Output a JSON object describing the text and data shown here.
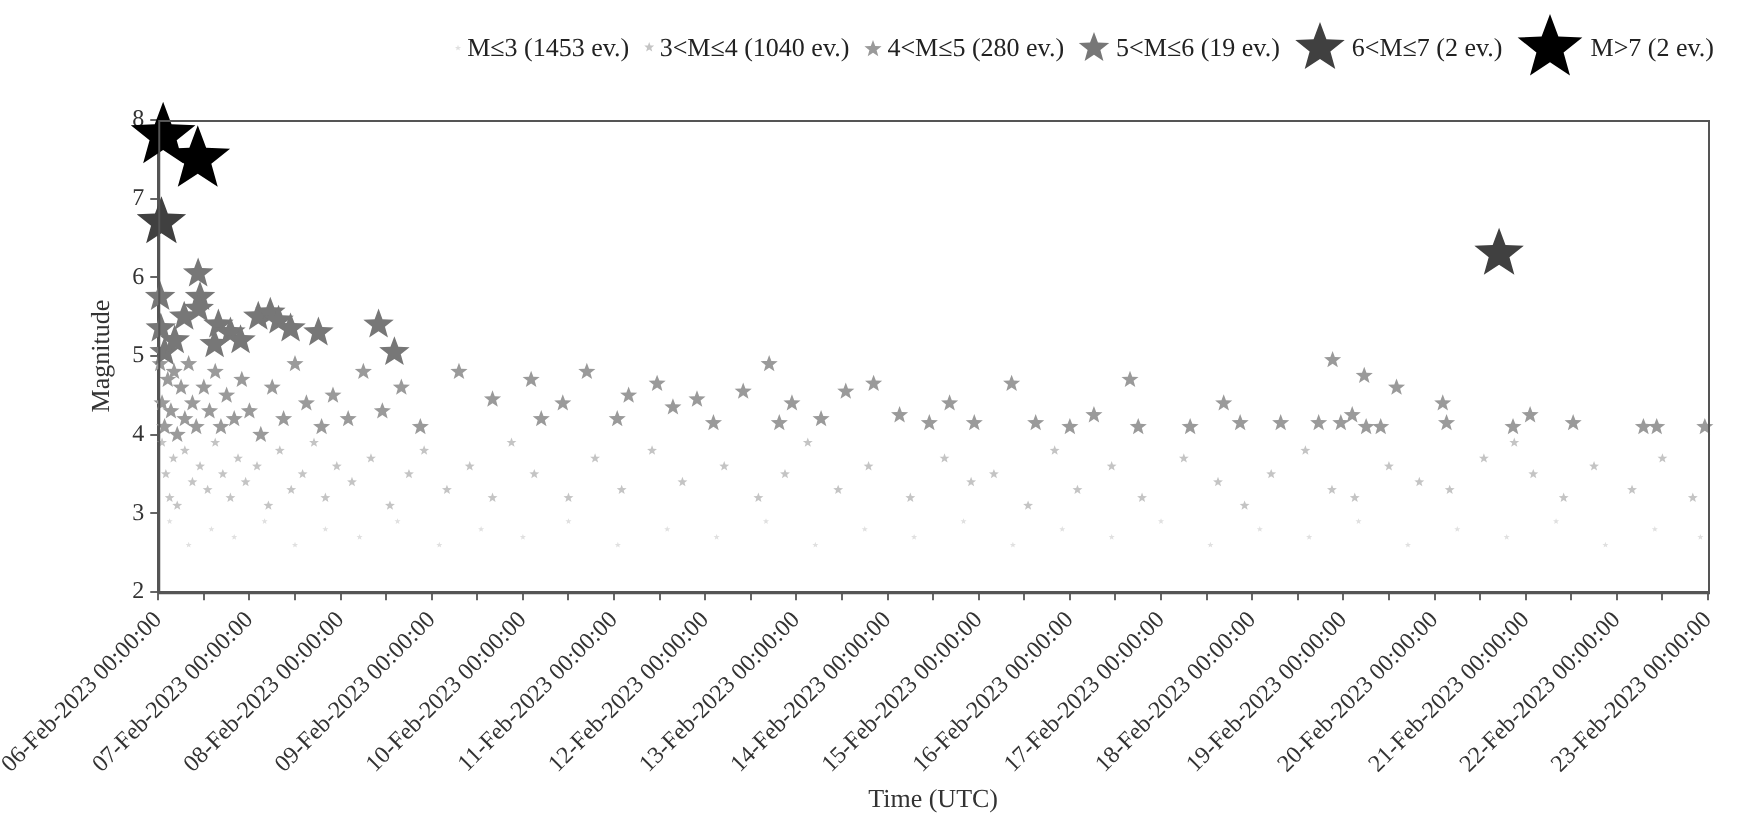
{
  "chart_data": {
    "type": "scatter",
    "xlabel": "Time (UTC)",
    "ylabel": "Magnitude",
    "marker": "star",
    "legend": "top",
    "grid": false,
    "xlim": [
      "2023-02-06",
      "2023-02-23"
    ],
    "xticks": [
      {
        "value": "2023-02-06",
        "label": "06-Feb-2023 00:00:00"
      },
      {
        "value": "2023-02-06T12:00",
        "label": null
      },
      {
        "value": "2023-02-07",
        "label": "07-Feb-2023 00:00:00"
      },
      {
        "value": "2023-02-07T12:00",
        "label": null
      },
      {
        "value": "2023-02-08",
        "label": "08-Feb-2023 00:00:00"
      },
      {
        "value": "2023-02-08T12:00",
        "label": null
      },
      {
        "value": "2023-02-09",
        "label": "09-Feb-2023 00:00:00"
      },
      {
        "value": "2023-02-09T12:00",
        "label": null
      },
      {
        "value": "2023-02-10",
        "label": "10-Feb-2023 00:00:00"
      },
      {
        "value": "2023-02-10T12:00",
        "label": null
      },
      {
        "value": "2023-02-11",
        "label": "11-Feb-2023 00:00:00"
      },
      {
        "value": "2023-02-11T12:00",
        "label": null
      },
      {
        "value": "2023-02-12",
        "label": "12-Feb-2023 00:00:00"
      },
      {
        "value": "2023-02-12T12:00",
        "label": null
      },
      {
        "value": "2023-02-13",
        "label": "13-Feb-2023 00:00:00"
      },
      {
        "value": "2023-02-13T12:00",
        "label": null
      },
      {
        "value": "2023-02-14",
        "label": "14-Feb-2023 00:00:00"
      },
      {
        "value": "2023-02-14T12:00",
        "label": null
      },
      {
        "value": "2023-02-15",
        "label": "15-Feb-2023 00:00:00"
      },
      {
        "value": "2023-02-15T12:00",
        "label": null
      },
      {
        "value": "2023-02-16",
        "label": "16-Feb-2023 00:00:00"
      },
      {
        "value": "2023-02-16T12:00",
        "label": null
      },
      {
        "value": "2023-02-17",
        "label": "17-Feb-2023 00:00:00"
      },
      {
        "value": "2023-02-17T12:00",
        "label": null
      },
      {
        "value": "2023-02-18",
        "label": "18-Feb-2023 00:00:00"
      },
      {
        "value": "2023-02-18T12:00",
        "label": null
      },
      {
        "value": "2023-02-19",
        "label": "19-Feb-2023 00:00:00"
      },
      {
        "value": "2023-02-19T12:00",
        "label": null
      },
      {
        "value": "2023-02-20",
        "label": "20-Feb-2023 00:00:00"
      },
      {
        "value": "2023-02-20T12:00",
        "label": null
      },
      {
        "value": "2023-02-21",
        "label": "21-Feb-2023 00:00:00"
      },
      {
        "value": "2023-02-21T12:00",
        "label": null
      },
      {
        "value": "2023-02-22",
        "label": "22-Feb-2023 00:00:00"
      },
      {
        "value": "2023-02-22T12:00",
        "label": null
      },
      {
        "value": "2023-02-23",
        "label": "23-Feb-2023 00:00:00"
      }
    ],
    "ylim": [
      2,
      8
    ],
    "yticks": [
      2,
      3,
      4,
      5,
      6,
      7,
      8
    ],
    "series": [
      {
        "name": "M≤3 (1453 ev.)",
        "color": "#e0e0e0",
        "x": [
          "2023-02-06T03:00",
          "2023-02-06T08:00",
          "2023-02-06T14:00",
          "2023-02-06T20:00",
          "2023-02-07T04:00",
          "2023-02-07T12:00",
          "2023-02-07T20:00",
          "2023-02-08T05:00",
          "2023-02-08T15:00",
          "2023-02-09T02:00",
          "2023-02-09T13:00",
          "2023-02-10T00:00",
          "2023-02-10T12:00",
          "2023-02-11T01:00",
          "2023-02-11T14:00",
          "2023-02-12T03:00",
          "2023-02-12T16:00",
          "2023-02-13T05:00",
          "2023-02-13T18:00",
          "2023-02-14T07:00",
          "2023-02-14T20:00",
          "2023-02-15T09:00",
          "2023-02-15T22:00",
          "2023-02-16T11:00",
          "2023-02-17T00:00",
          "2023-02-17T13:00",
          "2023-02-18T02:00",
          "2023-02-18T15:00",
          "2023-02-19T04:00",
          "2023-02-19T17:00",
          "2023-02-20T06:00",
          "2023-02-20T19:00",
          "2023-02-21T08:00",
          "2023-02-21T21:00",
          "2023-02-22T10:00",
          "2023-02-22T22:00"
        ],
        "values": [
          2.9,
          2.6,
          2.8,
          2.7,
          2.9,
          2.6,
          2.8,
          2.7,
          2.9,
          2.6,
          2.8,
          2.7,
          2.9,
          2.6,
          2.8,
          2.7,
          2.9,
          2.6,
          2.8,
          2.7,
          2.9,
          2.6,
          2.8,
          2.7,
          2.9,
          2.6,
          2.8,
          2.7,
          2.9,
          2.6,
          2.8,
          2.7,
          2.9,
          2.6,
          2.8,
          2.7
        ]
      },
      {
        "name": "3<M≤4 (1040 ev.)",
        "color": "#c4c4c4",
        "x": [
          "2023-02-06T01:00",
          "2023-02-06T02:00",
          "2023-02-06T03:00",
          "2023-02-06T04:00",
          "2023-02-06T05:00",
          "2023-02-06T07:00",
          "2023-02-06T09:00",
          "2023-02-06T11:00",
          "2023-02-06T13:00",
          "2023-02-06T15:00",
          "2023-02-06T17:00",
          "2023-02-06T19:00",
          "2023-02-06T21:00",
          "2023-02-06T23:00",
          "2023-02-07T02:00",
          "2023-02-07T05:00",
          "2023-02-07T08:00",
          "2023-02-07T11:00",
          "2023-02-07T14:00",
          "2023-02-07T17:00",
          "2023-02-07T20:00",
          "2023-02-07T23:00",
          "2023-02-08T03:00",
          "2023-02-08T08:00",
          "2023-02-08T13:00",
          "2023-02-08T18:00",
          "2023-02-08T22:00",
          "2023-02-09T04:00",
          "2023-02-09T10:00",
          "2023-02-09T16:00",
          "2023-02-09T21:00",
          "2023-02-10T03:00",
          "2023-02-10T12:00",
          "2023-02-10T19:00",
          "2023-02-11T02:00",
          "2023-02-11T10:00",
          "2023-02-11T18:00",
          "2023-02-12T05:00",
          "2023-02-12T14:00",
          "2023-02-12T21:00",
          "2023-02-13T03:00",
          "2023-02-13T11:00",
          "2023-02-13T19:00",
          "2023-02-14T06:00",
          "2023-02-14T15:00",
          "2023-02-14T22:00",
          "2023-02-15T04:00",
          "2023-02-15T13:00",
          "2023-02-15T20:00",
          "2023-02-16T02:00",
          "2023-02-16T11:00",
          "2023-02-16T19:00",
          "2023-02-17T06:00",
          "2023-02-17T15:00",
          "2023-02-17T22:00",
          "2023-02-18T05:00",
          "2023-02-18T14:00",
          "2023-02-18T21:00",
          "2023-02-19T03:00",
          "2023-02-19T12:00",
          "2023-02-19T20:00",
          "2023-02-20T04:00",
          "2023-02-20T13:00",
          "2023-02-20T21:00",
          "2023-02-21T02:00",
          "2023-02-21T10:00",
          "2023-02-21T18:00",
          "2023-02-22T04:00",
          "2023-02-22T12:00",
          "2023-02-22T20:00"
        ],
        "values": [
          3.9,
          3.5,
          3.2,
          3.7,
          3.1,
          3.8,
          3.4,
          3.6,
          3.3,
          3.9,
          3.5,
          3.2,
          3.7,
          3.4,
          3.6,
          3.1,
          3.8,
          3.3,
          3.5,
          3.9,
          3.2,
          3.6,
          3.4,
          3.7,
          3.1,
          3.5,
          3.8,
          3.3,
          3.6,
          3.2,
          3.9,
          3.5,
          3.2,
          3.7,
          3.3,
          3.8,
          3.4,
          3.6,
          3.2,
          3.5,
          3.9,
          3.3,
          3.6,
          3.2,
          3.7,
          3.4,
          3.5,
          3.1,
          3.8,
          3.3,
          3.6,
          3.2,
          3.7,
          3.4,
          3.1,
          3.5,
          3.8,
          3.3,
          3.2,
          3.6,
          3.4,
          3.3,
          3.7,
          3.9,
          3.5,
          3.2,
          3.6,
          3.3,
          3.7,
          3.2
        ]
      },
      {
        "name": "4<M≤5 (280 ev.)",
        "color": "#9a9a9a",
        "x": [
          "2023-02-06T00:30",
          "2023-02-06T01:00",
          "2023-02-06T01:40",
          "2023-02-06T02:30",
          "2023-02-06T03:20",
          "2023-02-06T04:10",
          "2023-02-06T05:00",
          "2023-02-06T06:00",
          "2023-02-06T07:00",
          "2023-02-06T08:00",
          "2023-02-06T09:00",
          "2023-02-06T10:00",
          "2023-02-06T12:00",
          "2023-02-06T13:30",
          "2023-02-06T15:00",
          "2023-02-06T16:30",
          "2023-02-06T18:00",
          "2023-02-06T20:00",
          "2023-02-06T22:00",
          "2023-02-07T00:00",
          "2023-02-07T03:00",
          "2023-02-07T06:00",
          "2023-02-07T09:00",
          "2023-02-07T12:00",
          "2023-02-07T15:00",
          "2023-02-07T19:00",
          "2023-02-07T22:00",
          "2023-02-08T02:00",
          "2023-02-08T06:00",
          "2023-02-08T11:00",
          "2023-02-08T16:00",
          "2023-02-08T21:00",
          "2023-02-09T07:10",
          "2023-02-09T16:00",
          "2023-02-10T02:10",
          "2023-02-10T04:50",
          "2023-02-10T10:30",
          "2023-02-10T16:50",
          "2023-02-11T00:50",
          "2023-02-11T03:50",
          "2023-02-11T11:20",
          "2023-02-11T15:30",
          "2023-02-11T21:50",
          "2023-02-12T02:10",
          "2023-02-12T10:00",
          "2023-02-12T16:50",
          "2023-02-12T19:30",
          "2023-02-12T22:50",
          "2023-02-13T06:30",
          "2023-02-13T13:00",
          "2023-02-13T20:20",
          "2023-02-14T03:10",
          "2023-02-14T11:00",
          "2023-02-14T16:20",
          "2023-02-14T22:50",
          "2023-02-15T08:40",
          "2023-02-15T15:00",
          "2023-02-16T00:00",
          "2023-02-16T06:20",
          "2023-02-16T15:50",
          "2023-02-16T18:00",
          "2023-02-17T07:40",
          "2023-02-17T16:30",
          "2023-02-17T20:50",
          "2023-02-18T07:30",
          "2023-02-18T17:30",
          "2023-02-18T21:10",
          "2023-02-18T23:20",
          "2023-02-19T02:20",
          "2023-02-19T05:30",
          "2023-02-19T06:00",
          "2023-02-19T09:50",
          "2023-02-19T14:00",
          "2023-02-20T02:10",
          "2023-02-20T03:10",
          "2023-02-20T20:40",
          "2023-02-21T01:10",
          "2023-02-21T12:30",
          "2023-02-22T07:00",
          "2023-02-22T10:30",
          "2023-02-22T23:10"
        ],
        "values": [
          4.9,
          4.4,
          4.1,
          4.7,
          4.3,
          4.8,
          4.0,
          4.6,
          4.2,
          4.9,
          4.4,
          4.1,
          4.6,
          4.3,
          4.8,
          4.1,
          4.5,
          4.2,
          4.7,
          4.3,
          4.0,
          4.6,
          4.2,
          4.9,
          4.4,
          4.1,
          4.5,
          4.2,
          4.8,
          4.3,
          4.6,
          4.1,
          4.8,
          4.45,
          4.7,
          4.2,
          4.4,
          4.8,
          4.2,
          4.5,
          4.65,
          4.35,
          4.45,
          4.15,
          4.55,
          4.9,
          4.15,
          4.4,
          4.2,
          4.55,
          4.65,
          4.25,
          4.15,
          4.4,
          4.15,
          4.65,
          4.15,
          4.1,
          4.25,
          4.7,
          4.1,
          4.1,
          4.4,
          4.15,
          4.15,
          4.15,
          4.95,
          4.15,
          4.25,
          4.75,
          4.1,
          4.1,
          4.6,
          4.4,
          4.15,
          4.1,
          4.25,
          4.15,
          4.1,
          4.1,
          4.1
        ]
      },
      {
        "name": "5<M≤6 (19 ev.)",
        "color": "#777777",
        "x": [
          "2023-02-06T00:30",
          "2023-02-06T00:40",
          "2023-02-06T01:40",
          "2023-02-06T04:20",
          "2023-02-06T06:50",
          "2023-02-06T10:30",
          "2023-02-06T11:00",
          "2023-02-06T10:40",
          "2023-02-06T14:50",
          "2023-02-06T15:50",
          "2023-02-06T19:00",
          "2023-02-06T21:40",
          "2023-02-07T02:20",
          "2023-02-07T05:30",
          "2023-02-07T07:40",
          "2023-02-07T10:50",
          "2023-02-07T18:10",
          "2023-02-08T10:00",
          "2023-02-08T14:10"
        ],
        "values": [
          5.75,
          5.35,
          5.05,
          5.2,
          5.5,
          6.05,
          5.75,
          5.6,
          5.15,
          5.4,
          5.3,
          5.2,
          5.5,
          5.55,
          5.45,
          5.35,
          5.3,
          5.4,
          5.05
        ]
      },
      {
        "name": "6<M≤7 (2 ev.)",
        "color": "#404040",
        "x": [
          "2023-02-06T00:50",
          "2023-02-20T17:00"
        ],
        "values": [
          6.7,
          6.3
        ]
      },
      {
        "name": "M>7 (2 ev.)",
        "color": "#000000",
        "x": [
          "2023-02-06T01:17",
          "2023-02-06T10:24"
        ],
        "values": [
          7.8,
          7.5
        ]
      }
    ]
  }
}
